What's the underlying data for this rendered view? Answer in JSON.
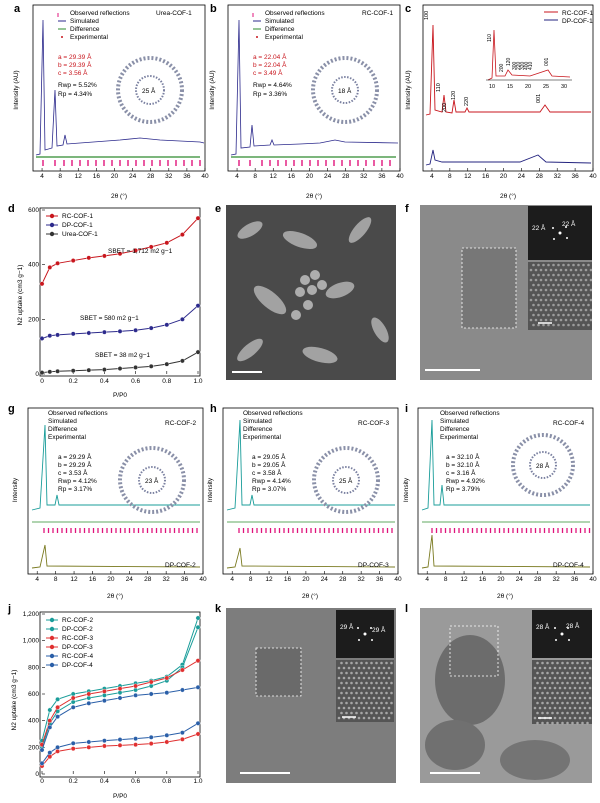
{
  "panels": {
    "a": {
      "letter": "a",
      "title": "Urea-COF-1",
      "legend": [
        "Observed reflections",
        "Simulated",
        "Difference",
        "Experimental"
      ],
      "params": [
        "a = 29.39 Å",
        "b = 29.39 Å",
        "c = 3.56 Å",
        "Rwp = 5.52%",
        "Rp = 4.34%"
      ],
      "pore": "25 Å",
      "ylabel": "Intensity (AU)",
      "xlabel": "2θ (°)",
      "xticks": [
        "4",
        "8",
        "12",
        "16",
        "20",
        "24",
        "28",
        "32",
        "36",
        "40"
      ]
    },
    "b": {
      "letter": "b",
      "title": "RC-COF-1",
      "legend": [
        "Observed reflections",
        "Simulated",
        "Difference",
        "Experimental"
      ],
      "params": [
        "a = 22.04 Å",
        "b = 22.04 Å",
        "c = 3.49 Å",
        "Rwp = 4.64%",
        "Rp = 3.36%"
      ],
      "pore": "18 Å",
      "ylabel": "Intensity (AU)",
      "xlabel": "2θ (°)",
      "xticks": [
        "4",
        "8",
        "12",
        "16",
        "20",
        "24",
        "28",
        "32",
        "36",
        "40"
      ]
    },
    "c": {
      "letter": "c",
      "legend": [
        "RC-COF-1",
        "DP-COF-1"
      ],
      "ylabel": "Intensity (AU)",
      "xlabel": "2θ (°)",
      "xticks": [
        "4",
        "8",
        "12",
        "16",
        "20",
        "24",
        "28",
        "32",
        "36",
        "40"
      ],
      "inset_xticks": [
        "10",
        "15",
        "20",
        "25",
        "30"
      ],
      "peaks": [
        "100",
        "110",
        "200",
        "120",
        "220",
        "001"
      ],
      "inset_peaks": [
        "110",
        "200",
        "120",
        "300",
        "220",
        "320",
        "400",
        "410",
        "001"
      ]
    },
    "d": {
      "letter": "d",
      "legend": [
        "RC-COF-1",
        "DP-COF-1",
        "Urea-COF-1"
      ],
      "ylabel": "N2 uptake (cm3 g−1)",
      "xlabel": "P/P0",
      "yticks": [
        "0",
        "200",
        "400",
        "600"
      ],
      "xticks": [
        "0",
        "0.2",
        "0.4",
        "0.6",
        "0.8",
        "1.0"
      ],
      "sbet": [
        "SBET = 1,712 m2 g−1",
        "SBET = 580 m2 g−1",
        "SBET = 38 m2 g−1"
      ]
    },
    "e": {
      "letter": "e"
    },
    "f": {
      "letter": "f",
      "d1": "22 Å",
      "d2": "22 Å"
    },
    "g": {
      "letter": "g",
      "title": "RC-COF-2",
      "bottom": "DP-COF-2",
      "legend": [
        "Observed reflections",
        "Simulated",
        "Difference",
        "Experimental"
      ],
      "params": [
        "a = 29.29 Å",
        "b = 29.29 Å",
        "c = 3.53 Å",
        "Rwp = 4.12%",
        "Rp = 3.17%"
      ],
      "pore": "23 Å",
      "ylabel": "Intensity",
      "xlabel": "2θ (°)",
      "xticks": [
        "4",
        "8",
        "12",
        "16",
        "20",
        "24",
        "28",
        "32",
        "36",
        "40"
      ]
    },
    "h": {
      "letter": "h",
      "title": "RC-COF-3",
      "bottom": "DP-COF-3",
      "legend": [
        "Observed reflections",
        "Simulated",
        "Difference",
        "Experimental"
      ],
      "params": [
        "a = 29.05 Å",
        "b = 29.05 Å",
        "c = 3.58 Å",
        "Rwp = 4.14%",
        "Rp = 3.07%"
      ],
      "pore": "25 Å",
      "ylabel": "Intensity",
      "xlabel": "2θ (°)",
      "xticks": [
        "4",
        "8",
        "12",
        "16",
        "20",
        "24",
        "28",
        "32",
        "36",
        "40"
      ]
    },
    "i": {
      "letter": "i",
      "title": "RC-COF-4",
      "bottom": "DP-COF-4",
      "legend": [
        "Observed reflections",
        "Simulated",
        "Difference",
        "Experimental"
      ],
      "params": [
        "a = 32.10 Å",
        "b = 32.10 Å",
        "c = 3.16 Å",
        "Rwp = 4.92%",
        "Rp = 3.79%"
      ],
      "pore": "28 Å",
      "ylabel": "Intensity",
      "xlabel": "2θ (°)",
      "xticks": [
        "4",
        "8",
        "12",
        "16",
        "20",
        "24",
        "28",
        "32",
        "36",
        "40"
      ]
    },
    "j": {
      "letter": "j",
      "legend": [
        "RC-COF-2",
        "DP-COF-2",
        "RC-COF-3",
        "DP-COF-3",
        "RC-COF-4",
        "DP-COF-4"
      ],
      "ylabel": "N2 uptake (cm3 g−1)",
      "xlabel": "P/P0",
      "yticks": [
        "0",
        "200",
        "400",
        "600",
        "800",
        "1,000",
        "1,200"
      ],
      "xticks": [
        "0",
        "0.2",
        "0.4",
        "0.6",
        "0.8",
        "1.0"
      ]
    },
    "k": {
      "letter": "k",
      "d1": "29 Å",
      "d2": "29 Å"
    },
    "l": {
      "letter": "l",
      "d1": "28 Å",
      "d2": "28 Å"
    }
  },
  "colors": {
    "red": "#c8161d",
    "blue": "#23237f",
    "navy": "#2c2a8c",
    "green": "#2e8b2e",
    "magenta": "#e0157c",
    "teal": "#1a9d9a",
    "olive": "#7a7a20",
    "orange": "#e06020"
  },
  "chart_data": [
    {
      "type": "line",
      "panel": "d",
      "x": [
        0,
        0.05,
        0.1,
        0.2,
        0.3,
        0.4,
        0.5,
        0.6,
        0.7,
        0.8,
        0.9,
        1.0
      ],
      "ylim": [
        0,
        600
      ],
      "xlim": [
        0,
        1
      ],
      "series": [
        {
          "name": "RC-COF-1",
          "values": [
            330,
            390,
            405,
            415,
            425,
            432,
            440,
            452,
            465,
            480,
            510,
            570
          ]
        },
        {
          "name": "DP-COF-1",
          "values": [
            130,
            140,
            143,
            147,
            150,
            153,
            156,
            160,
            168,
            180,
            200,
            250
          ]
        },
        {
          "name": "Urea-COF-1",
          "values": [
            5,
            8,
            10,
            12,
            14,
            16,
            20,
            24,
            28,
            36,
            48,
            80
          ]
        }
      ]
    },
    {
      "type": "line",
      "panel": "j",
      "x": [
        0,
        0.05,
        0.1,
        0.2,
        0.3,
        0.4,
        0.5,
        0.6,
        0.7,
        0.8,
        0.9,
        1.0
      ],
      "ylim": [
        0,
        1200
      ],
      "xlim": [
        0,
        1
      ],
      "series": [
        {
          "name": "RC-COF-2",
          "values": [
            250,
            480,
            560,
            600,
            620,
            640,
            660,
            680,
            700,
            730,
            820,
            1170
          ]
        },
        {
          "name": "DP-COF-2",
          "values": [
            200,
            380,
            470,
            540,
            570,
            590,
            610,
            630,
            660,
            700,
            800,
            1100
          ]
        },
        {
          "name": "RC-COF-3",
          "values": [
            220,
            400,
            500,
            570,
            600,
            620,
            640,
            660,
            690,
            720,
            780,
            850
          ]
        },
        {
          "name": "DP-COF-3",
          "values": [
            60,
            130,
            170,
            190,
            200,
            210,
            215,
            220,
            228,
            240,
            260,
            300
          ]
        },
        {
          "name": "RC-COF-4",
          "values": [
            180,
            350,
            430,
            500,
            530,
            550,
            570,
            590,
            600,
            610,
            630,
            650
          ]
        },
        {
          "name": "DP-COF-4",
          "values": [
            80,
            160,
            200,
            230,
            240,
            250,
            258,
            265,
            275,
            290,
            310,
            380
          ]
        }
      ]
    }
  ]
}
